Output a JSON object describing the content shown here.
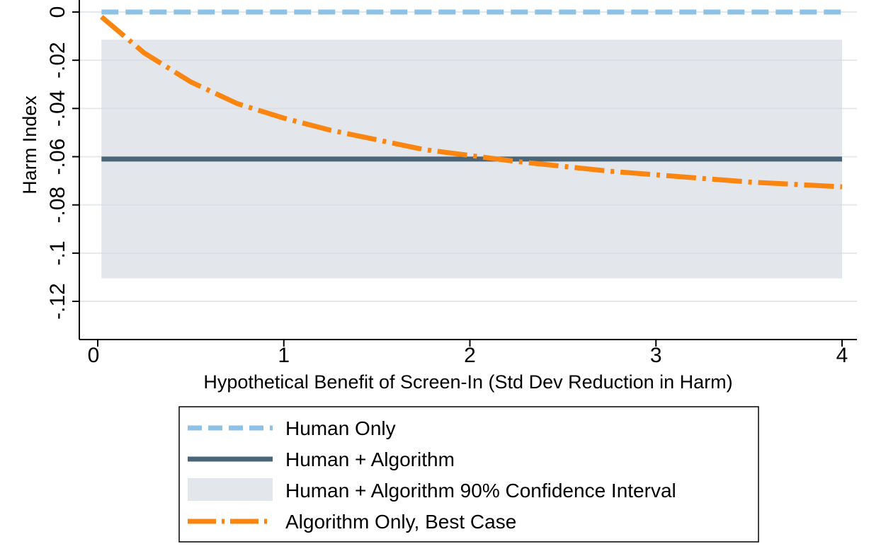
{
  "chart_data": {
    "type": "line",
    "title": "",
    "xlabel": "Hypothetical Benefit of Screen-In (Std Dev Reduction in Harm)",
    "ylabel": "Harm Index",
    "xlim": [
      0,
      4
    ],
    "ylim": [
      -0.135,
      0.0
    ],
    "x_ticks": [
      {
        "value": 0,
        "label": "0"
      },
      {
        "value": 1,
        "label": "1"
      },
      {
        "value": 2,
        "label": "2"
      },
      {
        "value": 3,
        "label": "3"
      },
      {
        "value": 4,
        "label": "4"
      }
    ],
    "y_ticks": [
      {
        "value": 0,
        "label": "0"
      },
      {
        "value": -0.02,
        "label": "-.02"
      },
      {
        "value": -0.04,
        "label": "-.04"
      },
      {
        "value": -0.06,
        "label": "-.06"
      },
      {
        "value": -0.08,
        "label": "-.08"
      },
      {
        "value": -0.1,
        "label": "-.1"
      },
      {
        "value": -0.12,
        "label": "-.12"
      }
    ],
    "grid": true,
    "series": [
      {
        "name": "Human Only",
        "style": "dashed",
        "color": "#8ec1e6",
        "x": [
          0.02,
          4
        ],
        "y": [
          0.0,
          0.0
        ]
      },
      {
        "name": "Human + Algorithm",
        "style": "solid",
        "color": "#4a6478",
        "x": [
          0.02,
          4
        ],
        "y": [
          -0.061,
          -0.061
        ]
      },
      {
        "name": "Algorithm Only, Best Case",
        "style": "dash-dot",
        "color": "#fb8511",
        "x": [
          0.02,
          0.25,
          0.5,
          0.75,
          1.0,
          1.25,
          1.5,
          1.75,
          2.0,
          2.25,
          2.5,
          2.75,
          3.0,
          3.25,
          3.5,
          3.75,
          4.0
        ],
        "y": [
          -0.002,
          -0.017,
          -0.029,
          -0.038,
          -0.044,
          -0.049,
          -0.053,
          -0.057,
          -0.0595,
          -0.062,
          -0.064,
          -0.066,
          -0.0675,
          -0.069,
          -0.0705,
          -0.0715,
          -0.0725
        ]
      }
    ],
    "band": {
      "name": "Human + Algorithm 90% Confidence Interval",
      "color": "#e3e6ea",
      "x": [
        0.02,
        4
      ],
      "lower": -0.1105,
      "upper": -0.0115
    },
    "legend": {
      "placement": "bottom-center",
      "entries": [
        {
          "label": "Human Only",
          "key": "dashed-line",
          "color": "#8ec1e6"
        },
        {
          "label": "Human + Algorithm",
          "key": "solid-line",
          "color": "#4a6478"
        },
        {
          "label": "Human + Algorithm 90% Confidence Interval",
          "key": "area",
          "color": "#e3e6ea"
        },
        {
          "label": "Algorithm Only, Best Case",
          "key": "dash-dot-line",
          "color": "#fb8511"
        }
      ]
    }
  }
}
